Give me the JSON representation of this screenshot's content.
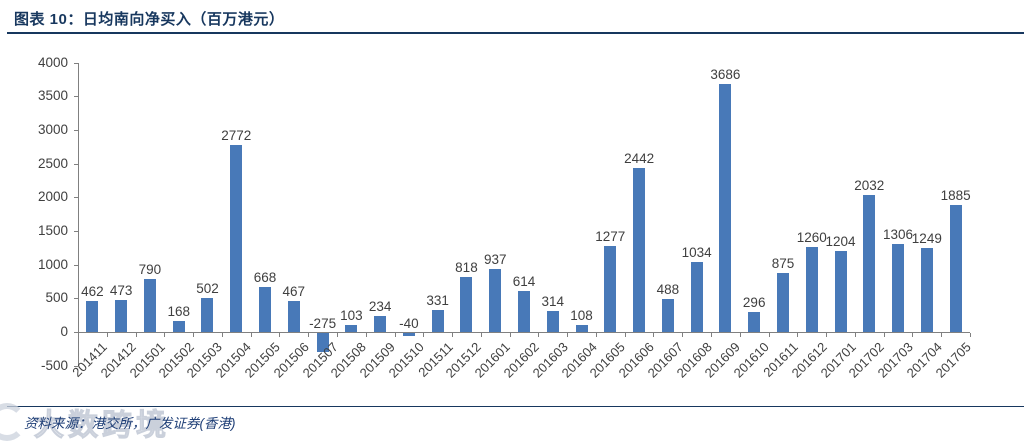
{
  "header": {
    "title": "图表 10：日均南向净买入（百万港元）"
  },
  "source": {
    "label": "资料来源：港交所，广发证券(香港)"
  },
  "watermark": {
    "text": "大数跨境"
  },
  "chart_data": {
    "type": "bar",
    "title": "日均南向净买入（百万港元）",
    "categories": [
      "201411",
      "201412",
      "201501",
      "201502",
      "201503",
      "201504",
      "201505",
      "201506",
      "201507",
      "201508",
      "201509",
      "201510",
      "201511",
      "201512",
      "201601",
      "201602",
      "201603",
      "201604",
      "201605",
      "201606",
      "201607",
      "201608",
      "201609",
      "201610",
      "201611",
      "201612",
      "201701",
      "201702",
      "201703",
      "201704",
      "201705"
    ],
    "values": [
      462,
      473,
      790,
      168,
      502,
      2772,
      668,
      467,
      -275,
      103,
      234,
      -40,
      331,
      818,
      937,
      614,
      314,
      108,
      1277,
      2442,
      488,
      1034,
      3686,
      296,
      875,
      1260,
      1204,
      2032,
      1306,
      1249,
      1885
    ],
    "y_ticks": [
      4000,
      3500,
      3000,
      2500,
      2000,
      1500,
      1000,
      500,
      0,
      -500
    ],
    "ylim": [
      -500,
      4000
    ],
    "xlabel": "",
    "ylabel": "",
    "grid": false,
    "legend": false,
    "data_labels": true,
    "bar_color": "#4879b8",
    "label_color": "#3f3f3f",
    "axis_color": "#808080",
    "accent_color": "#17375e"
  }
}
